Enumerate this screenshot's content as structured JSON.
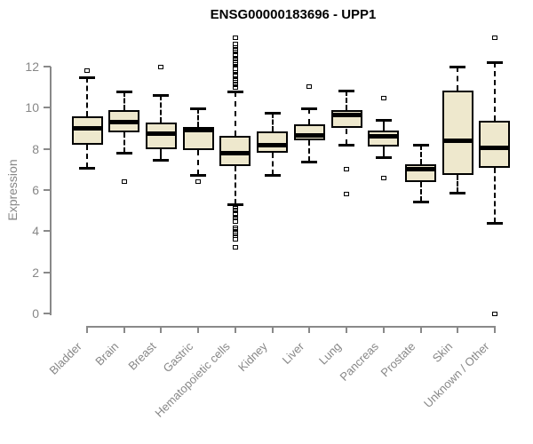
{
  "title": "ENSG00000183696 - UPP1",
  "chart_data": {
    "type": "boxplot",
    "title": "ENSG00000183696 - UPP1",
    "xlabel": "",
    "ylabel": "Expression",
    "ylim": [
      0,
      12
    ],
    "yticks": [
      0,
      2,
      4,
      6,
      8,
      10,
      12
    ],
    "grid": false,
    "legend": "none",
    "categories": [
      "Bladder",
      "Brain",
      "Breast",
      "Gastric",
      "Hematopoietic cells",
      "Kidney",
      "Liver",
      "Lung",
      "Pancreas",
      "Prostate",
      "Skin",
      "Unknown / Other"
    ],
    "boxes": [
      {
        "category": "Bladder",
        "whisker_low": 7.1,
        "q1": 8.2,
        "median": 9.0,
        "q3": 9.6,
        "whisker_high": 11.5,
        "outliers_high": [
          11.8
        ],
        "outliers_low": []
      },
      {
        "category": "Brain",
        "whisker_low": 7.8,
        "q1": 8.8,
        "median": 9.3,
        "q3": 9.9,
        "whisker_high": 10.8,
        "outliers_high": [],
        "outliers_low": [
          6.4
        ]
      },
      {
        "category": "Breast",
        "whisker_low": 7.45,
        "q1": 8.0,
        "median": 8.75,
        "q3": 9.3,
        "whisker_high": 10.6,
        "outliers_high": [
          12.0
        ],
        "outliers_low": []
      },
      {
        "category": "Gastric",
        "whisker_low": 6.75,
        "q1": 7.95,
        "median": 8.9,
        "q3": 9.05,
        "whisker_high": 9.95,
        "outliers_high": [],
        "outliers_low": [
          6.4
        ]
      },
      {
        "category": "Hematopoietic cells",
        "whisker_low": 5.3,
        "q1": 7.15,
        "median": 7.8,
        "q3": 8.65,
        "whisker_high": 10.8,
        "outliers_high": [
          11.0,
          11.1,
          11.15,
          11.2,
          11.3,
          11.35,
          11.4,
          11.5,
          11.55,
          11.6,
          11.7,
          11.75,
          11.8,
          11.9,
          12.1,
          12.15,
          12.2,
          12.3,
          12.35,
          12.4,
          12.5,
          12.55,
          12.6,
          12.7,
          12.75,
          12.8,
          12.9,
          12.95,
          13.0,
          13.1,
          13.4
        ],
        "outliers_low": [
          5.1,
          5.05,
          5.0,
          4.9,
          4.85,
          4.8,
          4.7,
          4.65,
          4.6,
          4.5,
          4.45,
          4.15,
          4.1,
          4.0,
          3.95,
          3.9,
          3.8,
          3.75,
          3.7,
          3.6,
          3.2
        ]
      },
      {
        "category": "Kidney",
        "whisker_low": 6.75,
        "q1": 7.8,
        "median": 8.2,
        "q3": 8.85,
        "whisker_high": 9.75,
        "outliers_high": [],
        "outliers_low": []
      },
      {
        "category": "Liver",
        "whisker_low": 7.4,
        "q1": 8.4,
        "median": 8.65,
        "q3": 9.2,
        "whisker_high": 9.95,
        "outliers_high": [
          11.05
        ],
        "outliers_low": []
      },
      {
        "category": "Lung",
        "whisker_low": 8.2,
        "q1": 9.0,
        "median": 9.65,
        "q3": 9.9,
        "whisker_high": 10.85,
        "outliers_high": [],
        "outliers_low": [
          7.0,
          5.8
        ]
      },
      {
        "category": "Pancreas",
        "whisker_low": 7.6,
        "q1": 8.1,
        "median": 8.6,
        "q3": 8.9,
        "whisker_high": 9.4,
        "outliers_high": [
          10.45
        ],
        "outliers_low": [
          6.6
        ]
      },
      {
        "category": "Prostate",
        "whisker_low": 5.45,
        "q1": 6.4,
        "median": 7.0,
        "q3": 7.25,
        "whisker_high": 8.2,
        "outliers_high": [],
        "outliers_low": []
      },
      {
        "category": "Skin",
        "whisker_low": 5.85,
        "q1": 6.75,
        "median": 8.4,
        "q3": 10.85,
        "whisker_high": 12.0,
        "outliers_high": [],
        "outliers_low": []
      },
      {
        "category": "Unknown / Other",
        "whisker_low": 4.4,
        "q1": 7.1,
        "median": 8.05,
        "q3": 9.35,
        "whisker_high": 12.2,
        "outliers_high": [
          13.4
        ],
        "outliers_low": [
          0.0
        ]
      }
    ]
  },
  "style": {
    "box_fill": "#EEE8CD",
    "box_border": "#000000",
    "median_color": "#000000",
    "axis_color": "#898989",
    "label_color": "#878787",
    "title_color": "#000000",
    "background": "#FFFFFF"
  }
}
